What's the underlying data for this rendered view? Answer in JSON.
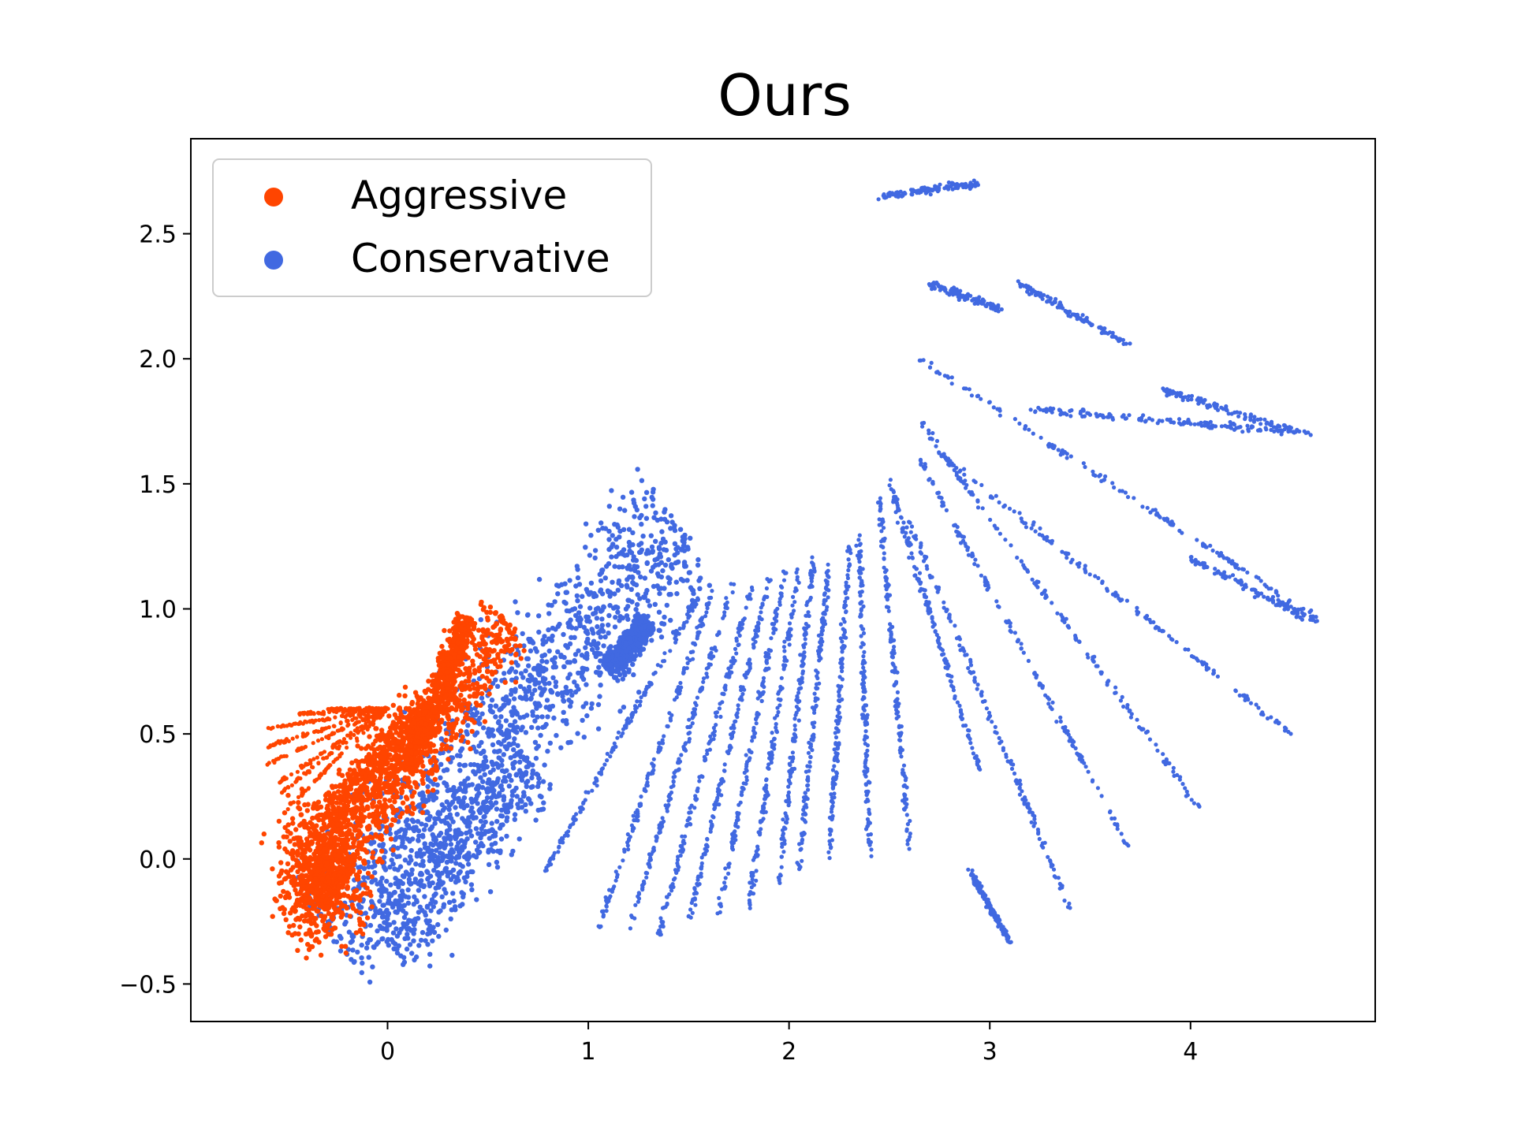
{
  "chart_data": {
    "type": "scatter",
    "title": "Ours",
    "xlabel": "",
    "ylabel": "",
    "xlim": [
      -0.98,
      4.92
    ],
    "ylim": [
      -0.65,
      2.88
    ],
    "xticks": [
      0,
      1,
      2,
      3,
      4
    ],
    "yticks": [
      -0.5,
      0.0,
      0.5,
      1.0,
      1.5,
      2.0,
      2.5
    ],
    "xtick_labels": [
      "0",
      "1",
      "2",
      "3",
      "4"
    ],
    "ytick_labels": [
      "−0.5",
      "0.0",
      "0.5",
      "1.0",
      "1.5",
      "2.0",
      "2.5"
    ],
    "grid": false,
    "legend_position": "top-left",
    "series": [
      {
        "name": "Aggressive",
        "color": "#ff4500",
        "clusters": [
          {
            "kind": "blob",
            "x": [
              -0.65,
              0.0
            ],
            "y": [
              -0.48,
              0.35
            ]
          },
          {
            "kind": "band",
            "from": [
              -0.15,
              0.05
            ],
            "to": [
              0.6,
              0.95
            ],
            "width": 0.28
          },
          {
            "kind": "band",
            "from": [
              0.1,
              0.35
            ],
            "to": [
              0.4,
              0.97
            ],
            "width": 0.12
          },
          {
            "kind": "band",
            "from": [
              -0.3,
              0.15
            ],
            "to": [
              0.2,
              0.6
            ],
            "width": 0.2
          }
        ],
        "fans": {
          "origin": [
            0.0,
            0.6
          ],
          "ends": [
            [
              -0.6,
              0.52
            ],
            [
              -0.6,
              0.45
            ],
            [
              -0.6,
              0.38
            ],
            [
              -0.55,
              0.3
            ],
            [
              -0.45,
              0.58
            ],
            [
              -0.3,
              0.6
            ],
            [
              -0.55,
              0.25
            ],
            [
              -0.5,
              0.2
            ]
          ]
        }
      },
      {
        "name": "Conservative",
        "color": "#4169e1",
        "clusters": [
          {
            "kind": "band",
            "from": [
              -0.3,
              -0.3
            ],
            "to": [
              1.45,
              1.35
            ],
            "width": 0.55
          },
          {
            "kind": "band",
            "from": [
              0.0,
              -0.35
            ],
            "to": [
              0.7,
              0.4
            ],
            "width": 0.35
          },
          {
            "kind": "band",
            "from": [
              1.1,
              0.75
            ],
            "to": [
              1.3,
              0.95
            ],
            "width": 0.1
          }
        ],
        "arcs": [
          {
            "from": [
              0.75,
              -0.1
            ],
            "to": [
              1.55,
              1.05
            ]
          },
          {
            "from": [
              1.05,
              -0.28
            ],
            "to": [
              1.62,
              1.08
            ]
          },
          {
            "from": [
              1.2,
              -0.3
            ],
            "to": [
              1.72,
              1.1
            ]
          },
          {
            "from": [
              1.35,
              -0.3
            ],
            "to": [
              1.82,
              1.1
            ]
          },
          {
            "from": [
              1.5,
              -0.25
            ],
            "to": [
              1.9,
              1.12
            ]
          },
          {
            "from": [
              1.65,
              -0.22
            ],
            "to": [
              1.98,
              1.15
            ]
          },
          {
            "from": [
              1.8,
              -0.2
            ],
            "to": [
              2.05,
              1.18
            ]
          },
          {
            "from": [
              1.95,
              -0.1
            ],
            "to": [
              2.12,
              1.2
            ]
          },
          {
            "from": [
              2.05,
              -0.05
            ],
            "to": [
              2.2,
              1.2
            ]
          },
          {
            "from": [
              2.2,
              0.0
            ],
            "to": [
              2.3,
              1.25
            ]
          },
          {
            "from": [
              2.4,
              0.0
            ],
            "to": [
              2.35,
              1.3
            ]
          },
          {
            "from": [
              2.6,
              0.05
            ],
            "to": [
              2.45,
              1.45
            ]
          },
          {
            "from": [
              2.95,
              0.35
            ],
            "to": [
              2.5,
              1.5
            ]
          },
          {
            "from": [
              3.1,
              -0.33
            ],
            "to": [
              2.9,
              -0.05
            ]
          },
          {
            "from": [
              3.4,
              -0.2
            ],
            "to": [
              2.6,
              1.35
            ]
          },
          {
            "from": [
              3.72,
              0.0
            ],
            "to": [
              2.65,
              1.6
            ]
          },
          {
            "from": [
              4.05,
              0.2
            ],
            "to": [
              2.65,
              1.75
            ]
          },
          {
            "from": [
              4.5,
              0.5
            ],
            "to": [
              2.75,
              1.62
            ]
          },
          {
            "from": [
              4.65,
              0.95
            ],
            "to": [
              2.65,
              2.0
            ]
          },
          {
            "from": [
              4.6,
              1.7
            ],
            "to": [
              3.2,
              1.8
            ]
          }
        ],
        "segments": [
          {
            "from": [
              2.7,
              2.3
            ],
            "to": [
              3.05,
              2.2
            ]
          },
          {
            "from": [
              3.15,
              2.3
            ],
            "to": [
              3.7,
              2.05
            ]
          },
          {
            "from": [
              3.85,
              1.88
            ],
            "to": [
              4.55,
              1.7
            ]
          },
          {
            "from": [
              4.0,
              1.2
            ],
            "to": [
              4.62,
              0.95
            ]
          },
          {
            "from": [
              2.45,
              2.65
            ],
            "to": [
              2.95,
              2.7
            ]
          }
        ]
      }
    ]
  }
}
